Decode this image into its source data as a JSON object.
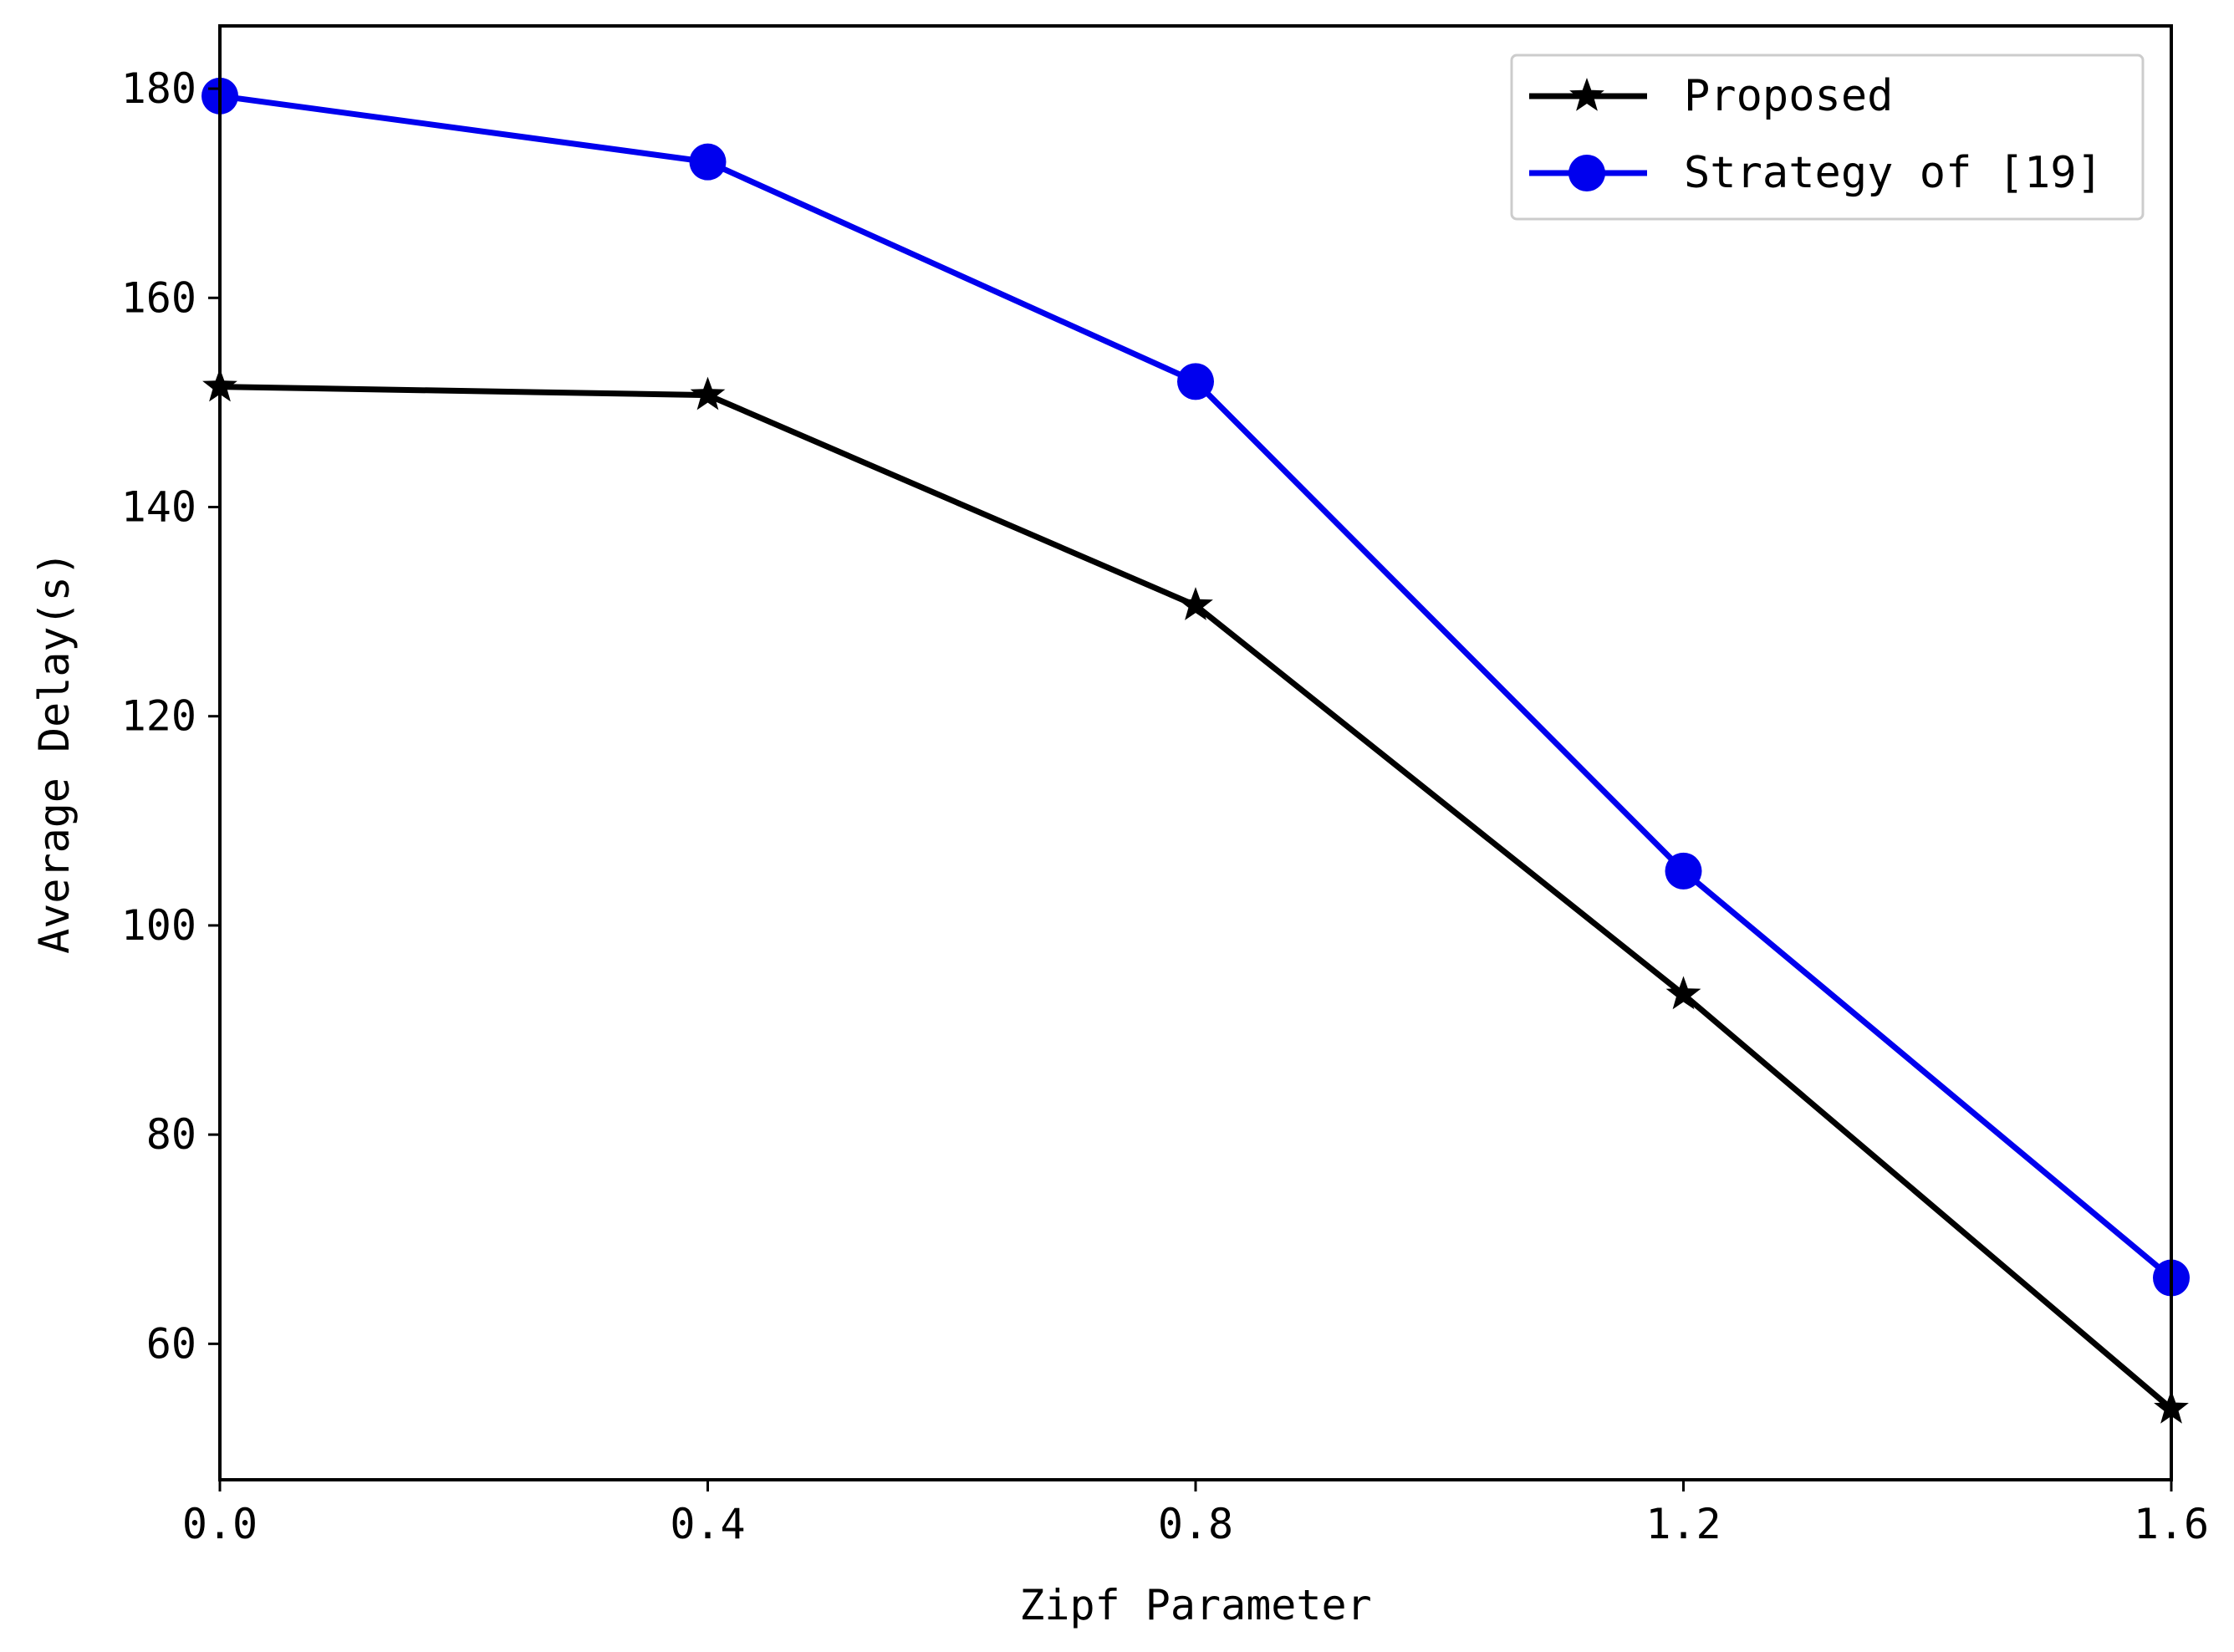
{
  "chart_data": {
    "type": "line",
    "title": "",
    "xlabel": "Zipf Parameter",
    "ylabel": "Average Delay(s)",
    "x": [
      0.0,
      0.4,
      0.8,
      1.2,
      1.6
    ],
    "x_tick_labels": [
      "0.0",
      "0.4",
      "0.8",
      "1.2",
      "1.6"
    ],
    "y_ticks": [
      60,
      80,
      100,
      120,
      140,
      160,
      180
    ],
    "y_tick_labels": [
      "60",
      "80",
      "100",
      "120",
      "140",
      "160",
      "180"
    ],
    "xlim": [
      0.0,
      1.6
    ],
    "ylim": [
      47,
      186
    ],
    "grid": false,
    "legend_position": "top-right",
    "series": [
      {
        "name": "Proposed",
        "values": [
          151.5,
          150.7,
          130.6,
          93.4,
          53.8
        ],
        "color": "#000000",
        "marker": "star"
      },
      {
        "name": "Strategy of [19]",
        "values": [
          179.3,
          173.0,
          152.0,
          105.2,
          66.3
        ],
        "color": "#0000ee",
        "marker": "circle"
      }
    ]
  }
}
